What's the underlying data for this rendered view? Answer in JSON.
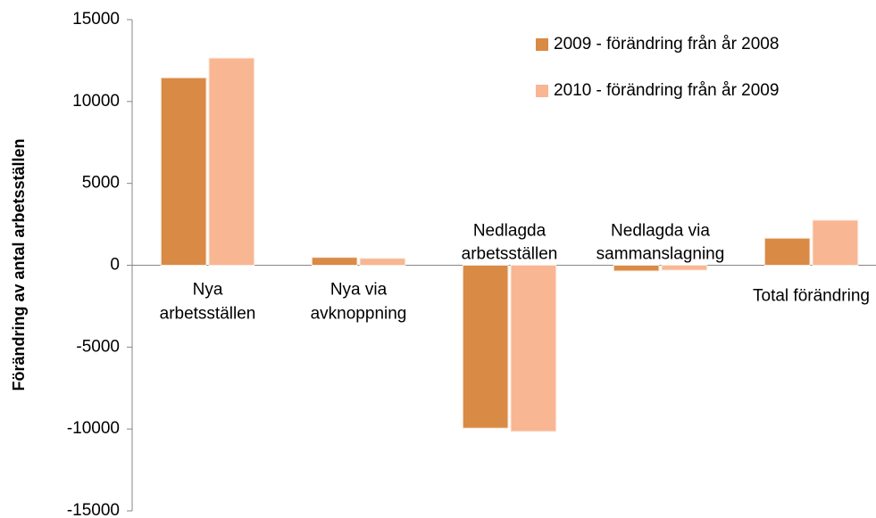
{
  "chart_data": {
    "type": "bar",
    "y_label": "Förändring av antal arbetsställen",
    "categories": [
      [
        "Nya",
        "arbetsställen"
      ],
      [
        "Nya via",
        "avknoppning"
      ],
      [
        "Nedlagda",
        "arbetsställen"
      ],
      [
        "Nedlagda via",
        "sammanslagning"
      ],
      [
        "Total förändring"
      ]
    ],
    "series": [
      {
        "name": "2009 - förändring från år 2008",
        "color": "#d98a45",
        "values": [
          11450,
          480,
          -9950,
          -350,
          1650
        ]
      },
      {
        "name": "2010 - förändring från år 2009",
        "color": "#f8b693",
        "values": [
          12650,
          420,
          -10150,
          -300,
          2750
        ]
      }
    ],
    "ylim": [
      -15000,
      15000
    ],
    "yticks": [
      -15000,
      -10000,
      -5000,
      0,
      5000,
      10000,
      15000
    ],
    "legend": "top-right"
  }
}
